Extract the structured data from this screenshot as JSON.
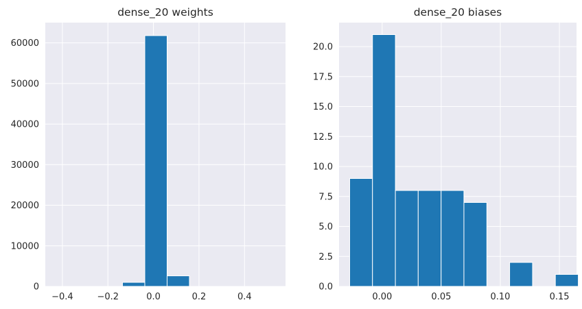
{
  "chart_data": [
    {
      "type": "bar",
      "title": "dense_20 weights",
      "xlabel": "",
      "ylabel": "",
      "xlim": [
        -0.475,
        0.58
      ],
      "ylim": [
        0,
        65000
      ],
      "xticks": [
        -0.4,
        -0.2,
        0.0,
        0.2,
        0.4
      ],
      "xtick_labels": [
        "−0.4",
        "−0.2",
        "0.0",
        "0.2",
        "0.4"
      ],
      "yticks": [
        0,
        10000,
        20000,
        30000,
        40000,
        50000,
        60000
      ],
      "ytick_labels": [
        "0",
        "10000",
        "20000",
        "30000",
        "40000",
        "50000",
        "60000"
      ],
      "bins": [
        {
          "x0": -0.43,
          "x1": -0.332,
          "value": 0
        },
        {
          "x0": -0.332,
          "x1": -0.234,
          "value": 0
        },
        {
          "x0": -0.234,
          "x1": -0.136,
          "value": 0
        },
        {
          "x0": -0.136,
          "x1": -0.038,
          "value": 1000
        },
        {
          "x0": -0.038,
          "x1": 0.06,
          "value": 61800
        },
        {
          "x0": 0.06,
          "x1": 0.158,
          "value": 2600
        },
        {
          "x0": 0.158,
          "x1": 0.256,
          "value": 0
        },
        {
          "x0": 0.256,
          "x1": 0.354,
          "value": 0
        },
        {
          "x0": 0.354,
          "x1": 0.452,
          "value": 0
        },
        {
          "x0": 0.452,
          "x1": 0.55,
          "value": 0
        }
      ],
      "grid": true,
      "color": "#1f77b4"
    },
    {
      "type": "bar",
      "title": "dense_20 biases",
      "xlabel": "",
      "ylabel": "",
      "xlim": [
        -0.0365,
        0.1645
      ],
      "ylim": [
        0,
        22
      ],
      "xticks": [
        0.0,
        0.05,
        0.1,
        0.15
      ],
      "xtick_labels": [
        "0.00",
        "0.05",
        "0.10",
        "0.15"
      ],
      "yticks": [
        0,
        2.5,
        5,
        7.5,
        10,
        12.5,
        15,
        17.5,
        20
      ],
      "ytick_labels": [
        "0.0",
        "2.5",
        "5.0",
        "7.5",
        "10.0",
        "12.5",
        "15.0",
        "17.5",
        "20.0"
      ],
      "bins": [
        {
          "x0": -0.0275,
          "x1": -0.0082,
          "value": 9
        },
        {
          "x0": -0.0082,
          "x1": 0.0112,
          "value": 21
        },
        {
          "x0": 0.0112,
          "x1": 0.0305,
          "value": 8
        },
        {
          "x0": 0.0305,
          "x1": 0.0499,
          "value": 8
        },
        {
          "x0": 0.0499,
          "x1": 0.0692,
          "value": 8
        },
        {
          "x0": 0.0692,
          "x1": 0.0886,
          "value": 7
        },
        {
          "x0": 0.0886,
          "x1": 0.1079,
          "value": 0
        },
        {
          "x0": 0.1079,
          "x1": 0.1273,
          "value": 2
        },
        {
          "x0": 0.1273,
          "x1": 0.1466,
          "value": 0
        },
        {
          "x0": 0.1466,
          "x1": 0.166,
          "value": 1
        }
      ],
      "grid": true,
      "color": "#1f77b4"
    }
  ]
}
